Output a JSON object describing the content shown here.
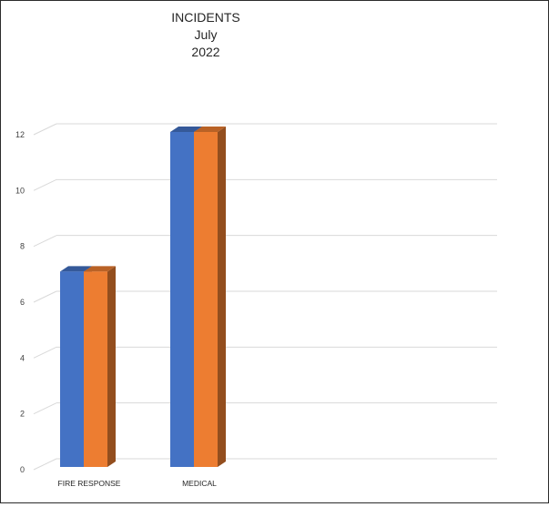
{
  "chart_data": {
    "type": "bar",
    "style": "3d-clustered-column",
    "title": [
      "INCIDENTS",
      "July",
      "2022"
    ],
    "categories": [
      "FIRE RESPONSE",
      "MEDICAL"
    ],
    "series": [
      {
        "values": [
          7,
          12
        ],
        "color": "#4472C4"
      },
      {
        "values": [
          7,
          12
        ],
        "color": "#ED7D31"
      }
    ],
    "ylim": [
      0,
      12
    ],
    "yticks": [
      0,
      2,
      4,
      6,
      8,
      10,
      12
    ],
    "grid": true,
    "legend": "none"
  }
}
